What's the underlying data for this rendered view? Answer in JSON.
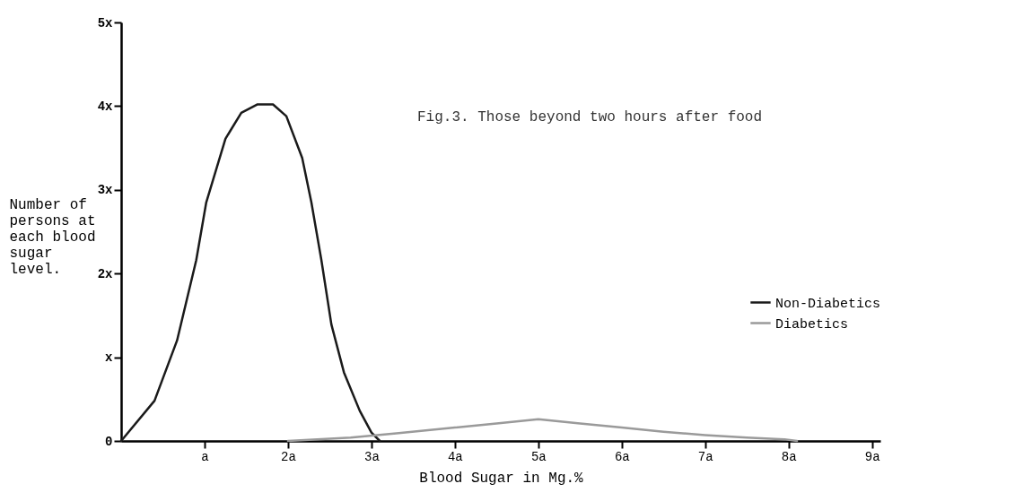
{
  "chart_data": {
    "type": "line",
    "title": "Fig.3. Those beyond two hours after food",
    "xlabel": "Blood Sugar in Mg.%",
    "ylabel": "Number of persons at each blood sugar level.",
    "series": [
      {
        "name": "Non-Diabetics",
        "color": "#1a1a1a",
        "x": [
          0,
          0.4,
          0.67,
          0.9,
          1.02,
          1.25,
          1.44,
          1.63,
          1.82,
          1.98,
          2.17,
          2.28,
          2.4,
          2.52,
          2.67,
          2.86,
          3.0,
          3.1
        ],
        "values": [
          0,
          0.48,
          1.2,
          2.16,
          2.85,
          3.61,
          3.92,
          4.02,
          4.02,
          3.88,
          3.38,
          2.85,
          2.16,
          1.39,
          0.82,
          0.36,
          0.1,
          0
        ]
      },
      {
        "name": "Diabetics",
        "color": "#9a9a9a",
        "x": [
          2.0,
          2.75,
          3.3,
          4.0,
          4.5,
          5.0,
          5.5,
          6.0,
          6.5,
          7.0,
          7.5,
          7.95,
          8.1
        ],
        "values": [
          0,
          0.04,
          0.09,
          0.16,
          0.21,
          0.26,
          0.21,
          0.16,
          0.11,
          0.07,
          0.04,
          0.02,
          0
        ]
      }
    ],
    "xlim": [
      0,
      9.1
    ],
    "ylim": [
      0,
      5
    ],
    "xticks": [
      {
        "value": 1,
        "label": "a"
      },
      {
        "value": 2,
        "label": "2a"
      },
      {
        "value": 3,
        "label": "3a"
      },
      {
        "value": 4,
        "label": "4a"
      },
      {
        "value": 5,
        "label": "5a"
      },
      {
        "value": 6,
        "label": "6a"
      },
      {
        "value": 7,
        "label": "7a"
      },
      {
        "value": 8,
        "label": "8a"
      },
      {
        "value": 9,
        "label": "9a"
      }
    ],
    "yticks": [
      0,
      {
        "value": 1,
        "label": "x"
      },
      {
        "value": 2,
        "label": "2x"
      },
      {
        "value": 3,
        "label": "3x"
      },
      {
        "value": 4,
        "label": "4x"
      },
      {
        "value": 5,
        "label": "5x"
      }
    ],
    "grid": false,
    "legend": "right",
    "line_style": "solid",
    "marker": "none"
  }
}
